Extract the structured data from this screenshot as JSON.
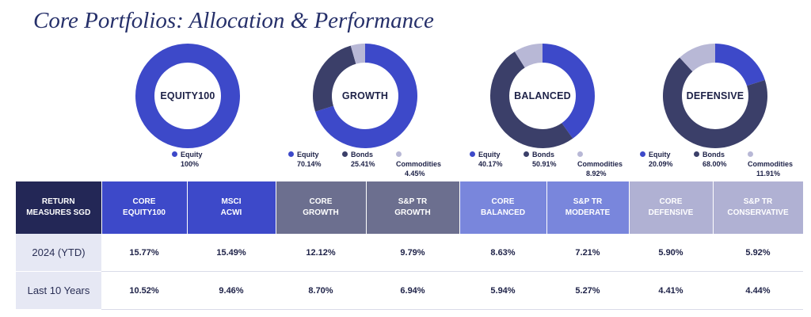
{
  "title": "Core Portfolios: Allocation & Performance",
  "colors": {
    "equity": "#3d49c9",
    "bonds": "#3b3f69",
    "commodities": "#b8b8d6"
  },
  "chart_data": [
    {
      "type": "pie",
      "center_label": "EQUITY100",
      "slices": [
        {
          "label": "Equity",
          "value": 100,
          "display": "100%"
        }
      ]
    },
    {
      "type": "pie",
      "center_label": "GROWTH",
      "slices": [
        {
          "label": "Equity",
          "value": 70.14,
          "display": "70.14%"
        },
        {
          "label": "Bonds",
          "value": 25.41,
          "display": "25.41%"
        },
        {
          "label": "Commodities",
          "value": 4.45,
          "display": "4.45%"
        }
      ]
    },
    {
      "type": "pie",
      "center_label": "BALANCED",
      "slices": [
        {
          "label": "Equity",
          "value": 40.17,
          "display": "40.17%"
        },
        {
          "label": "Bonds",
          "value": 50.91,
          "display": "50.91%"
        },
        {
          "label": "Commodities",
          "value": 8.92,
          "display": "8.92%"
        }
      ]
    },
    {
      "type": "pie",
      "center_label": "DEFENSIVE",
      "slices": [
        {
          "label": "Equity",
          "value": 20.09,
          "display": "20.09%"
        },
        {
          "label": "Bonds",
          "value": 68.0,
          "display": "68.00%"
        },
        {
          "label": "Commodities",
          "value": 11.91,
          "display": "11.91%"
        }
      ]
    },
    {
      "type": "table",
      "headers": [
        {
          "line1": "RETURN",
          "line2": "MEASURES SGD",
          "color": "#232756"
        },
        {
          "line1": "CORE",
          "line2": "EQUITY100",
          "color": "#3d49c9"
        },
        {
          "line1": "MSCI",
          "line2": "ACWI",
          "color": "#3d49c9"
        },
        {
          "line1": "CORE",
          "line2": "GROWTH",
          "color": "#6c6f8f"
        },
        {
          "line1": "S&P TR",
          "line2": "GROWTH",
          "color": "#6c6f8f"
        },
        {
          "line1": "CORE",
          "line2": "BALANCED",
          "color": "#7986dc"
        },
        {
          "line1": "S&P TR",
          "line2": "MODERATE",
          "color": "#7986dc"
        },
        {
          "line1": "CORE",
          "line2": "DEFENSIVE",
          "color": "#b0b1d3"
        },
        {
          "line1": "S&P TR",
          "line2": "CONSERVATIVE",
          "color": "#b0b1d3"
        }
      ],
      "rows": [
        {
          "label": "2024 (YTD)",
          "values": [
            "15.77%",
            "15.49%",
            "12.12%",
            "9.79%",
            "8.63%",
            "7.21%",
            "5.90%",
            "5.92%"
          ]
        },
        {
          "label": "Last 10 Years",
          "values": [
            "10.52%",
            "9.46%",
            "8.70%",
            "6.94%",
            "5.94%",
            "5.27%",
            "4.41%",
            "4.44%"
          ]
        }
      ]
    }
  ]
}
